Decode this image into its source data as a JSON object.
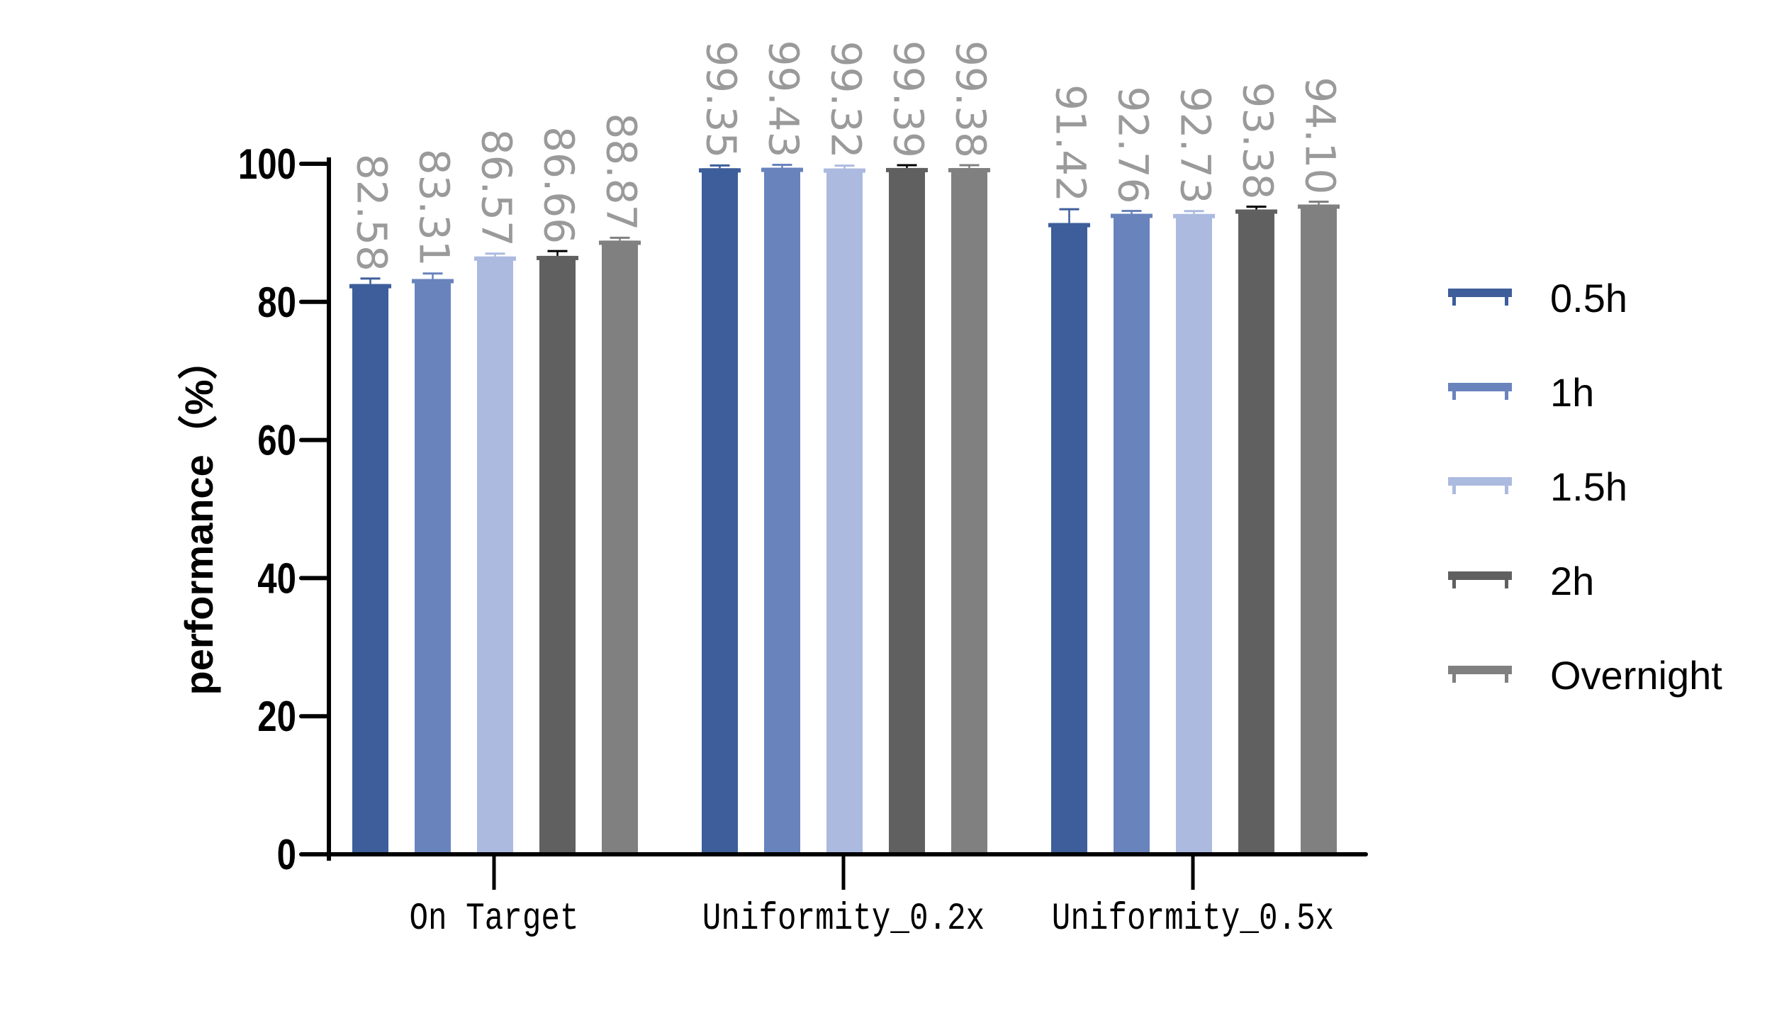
{
  "chart_data": {
    "type": "bar",
    "title": "",
    "xlabel": "",
    "ylabel": "performance（%）",
    "ylim": [
      0,
      100
    ],
    "yticks": [
      0,
      20,
      40,
      60,
      80,
      100
    ],
    "grid": false,
    "legend_position": "right",
    "categories": [
      "On Target",
      "Uniformity_0.2x",
      "Uniformity_0.5x"
    ],
    "series": [
      {
        "name": "0.5h",
        "color": "#3D5E9A",
        "values": [
          82.58,
          99.35,
          91.42
        ],
        "labels": [
          "82.58",
          "99.35",
          "91.42"
        ],
        "errors": [
          0.8,
          0.3,
          2.0
        ]
      },
      {
        "name": "1h",
        "color": "#6983BD",
        "values": [
          83.31,
          99.43,
          92.76
        ],
        "labels": [
          "83.31",
          "99.43",
          "92.76"
        ],
        "errors": [
          0.8,
          0.3,
          0.3
        ]
      },
      {
        "name": "1.5h",
        "color": "#ACBADF",
        "values": [
          86.57,
          99.32,
          92.73
        ],
        "labels": [
          "86.57",
          "99.32",
          "92.73"
        ],
        "errors": [
          0.1,
          0.3,
          0.4
        ]
      },
      {
        "name": "2h",
        "color": "#606060",
        "values": [
          86.66,
          99.39,
          93.38
        ],
        "labels": [
          "86.66",
          "99.39",
          "93.38"
        ],
        "errors": [
          0.7,
          0.3,
          0.3
        ]
      },
      {
        "name": "Overnight",
        "color": "#808080",
        "values": [
          88.87,
          99.38,
          94.1
        ],
        "labels": [
          "88.87",
          "99.38",
          "94.10"
        ],
        "errors": [
          0.3,
          0.3,
          0.3
        ]
      }
    ]
  }
}
